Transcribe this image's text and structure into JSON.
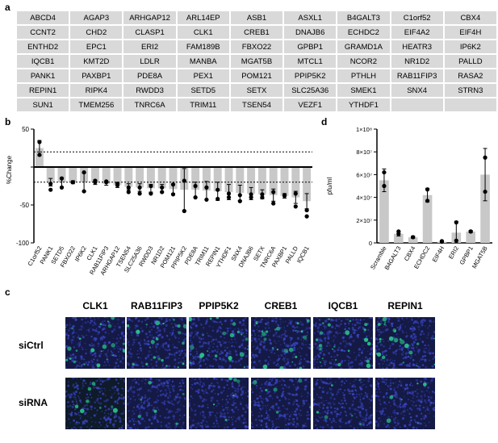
{
  "panel_a": {
    "letter": "a",
    "rows": [
      [
        "ABCD4",
        "AGAP3",
        "ARHGAP12",
        "ARL14EP",
        "ASB1",
        "ASXL1",
        "B4GALT3",
        "C1orf52",
        "CBX4"
      ],
      [
        "CCNT2",
        "CHD2",
        "CLASP1",
        "CLK1",
        "CREB1",
        "DNAJB6",
        "ECHDC2",
        "EIF4A2",
        "EIF4H"
      ],
      [
        "ENTHD2",
        "EPC1",
        "ERI2",
        "FAM189B",
        "FBXO22",
        "GPBP1",
        "GRAMD1A",
        "HEATR3",
        "IP6K2"
      ],
      [
        "IQCB1",
        "KMT2D",
        "LDLR",
        "MANBA",
        "MGAT5B",
        "MTCL1",
        "NCOR2",
        "NR1D2",
        "PALLD"
      ],
      [
        "PANK1",
        "PAXBP1",
        "PDE8A",
        "PEX1",
        "POM121",
        "PPIP5K2",
        "PTHLH",
        "RAB11FIP3",
        "RASA2"
      ],
      [
        "REPIN1",
        "RIPK4",
        "RWDD3",
        "SETD5",
        "SETX",
        "SLC25A36",
        "SMEK1",
        "SNX4",
        "STRN3"
      ],
      [
        "SUN1",
        "TMEM256",
        "TNRC6A",
        "TRIM11",
        "TSEN54",
        "VEZF1",
        "YTHDF1",
        "",
        ""
      ]
    ]
  },
  "panel_b": {
    "letter": "b",
    "ylabel": "%Change",
    "y_ticks": [
      "50",
      "",
      "-50",
      "-100"
    ],
    "y_tick_values": [
      50,
      0,
      -50,
      -100
    ],
    "threshold_values": [
      20,
      -20
    ]
  },
  "panel_d": {
    "letter": "d",
    "ylabel": "pfu/ml",
    "y_ticks": [
      "0",
      "2×10⁷",
      "4×10⁷",
      "6×10⁷",
      "8×10⁷",
      "1×10⁸"
    ],
    "y_tick_values": [
      0,
      20000000,
      40000000,
      60000000,
      80000000,
      100000000
    ]
  },
  "panel_c": {
    "letter": "c",
    "columns": [
      "CLK1",
      "RAB11FIP3",
      "PPIP5K2",
      "CREB1",
      "IQCB1",
      "REPIN1"
    ],
    "row_labels": [
      "siCtrl",
      "siRNA"
    ]
  },
  "chart_data": [
    {
      "type": "bar",
      "categories": [
        "C1orf52",
        "PANK1",
        "SETD5",
        "FBXO22",
        "IP6K2",
        "CLK1",
        "RAB11FIP3",
        "ARHGAP12",
        "TSEN54",
        "SLC25A36",
        "RWDD3",
        "NR1D2",
        "POM121",
        "PPIP5K2",
        "PDE8A",
        "TRIM11",
        "REPIN1",
        "YTHDF1",
        "SNX4",
        "DNAJB6",
        "SETX",
        "TNRC6A",
        "PAXBP1",
        "PALLD",
        "IQCB1"
      ],
      "values": [
        25,
        -20,
        -20,
        -20,
        -20,
        -20,
        -22,
        -24,
        -26,
        -27,
        -28,
        -28,
        -29,
        -30,
        -30,
        -31,
        -32,
        -33,
        -34,
        -35,
        -36,
        -37,
        -38,
        -40,
        -45
      ],
      "errors": [
        10,
        5,
        6,
        2,
        12,
        3,
        2,
        3,
        4,
        5,
        5,
        5,
        6,
        28,
        10,
        12,
        12,
        10,
        10,
        8,
        6,
        8,
        3,
        8,
        10
      ],
      "points": [
        [
          33,
          16
        ],
        [
          -22,
          -30
        ],
        [
          -15,
          -27
        ],
        [
          -20,
          -20
        ],
        [
          -7,
          -32
        ],
        [
          -20,
          -18
        ],
        [
          -20,
          -19
        ],
        [
          -24,
          -22
        ],
        [
          -27,
          -33
        ],
        [
          -27,
          -35
        ],
        [
          -25,
          -35
        ],
        [
          -27,
          -33
        ],
        [
          -23,
          -36
        ],
        [
          -18,
          -58
        ],
        [
          -25,
          -40
        ],
        [
          -27,
          -43
        ],
        [
          -30,
          -42
        ],
        [
          -35,
          -40
        ],
        [
          -37,
          -45
        ],
        [
          -36,
          -40
        ],
        [
          -40,
          -36
        ],
        [
          -33,
          -48
        ],
        [
          -38,
          -37
        ],
        [
          -35,
          -52
        ],
        [
          -57,
          -65
        ]
      ],
      "xlabel": "",
      "ylabel": "%Change",
      "ylim": [
        -100,
        50
      ],
      "thresholds": [
        20,
        -20
      ]
    },
    {
      "type": "bar",
      "categories": [
        "Scramble",
        "B4GALT3",
        "CBX4",
        "ECHDC2",
        "EIF4H",
        "ERI2",
        "GPBP1",
        "MGAT5B"
      ],
      "values": [
        55000000,
        8000000,
        5000000,
        42000000,
        1000000,
        9000000,
        10000000,
        60000000
      ],
      "errors": [
        10000000,
        2000000,
        1000000,
        6000000,
        1000000,
        10000000,
        1000000,
        23000000
      ],
      "points": [
        [
          62000000,
          50000000
        ],
        [
          10000000,
          8000000
        ],
        [
          5000000,
          5000000
        ],
        [
          47000000,
          37000000
        ],
        [
          1000000,
          1500000
        ],
        [
          18000000,
          2000000
        ],
        [
          10000000,
          10000000
        ],
        [
          75000000,
          45000000
        ]
      ],
      "xlabel": "",
      "ylabel": "pfu/ml",
      "ylim": [
        0,
        100000000
      ]
    }
  ]
}
